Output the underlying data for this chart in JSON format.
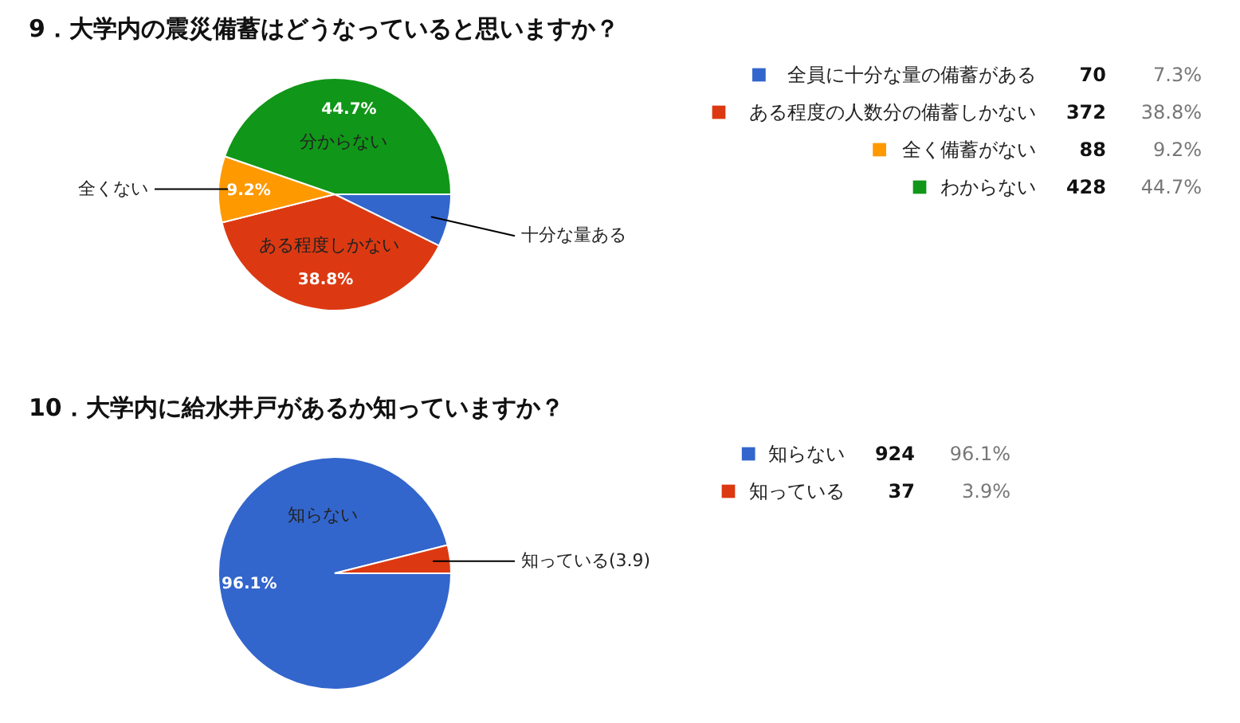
{
  "chart_data": [
    {
      "type": "pie",
      "title": "9．大学内の震災備蓄はどうなっていると思いますか？",
      "categories": [
        "全員に十分な量の備蓄がある",
        "ある程度の人数分の備蓄しかない",
        "全く備蓄がない",
        "わからない"
      ],
      "values": [
        7.3,
        38.8,
        9.2,
        44.7
      ],
      "value_labels": [
        "7.3%",
        "38.8%",
        "9.2%",
        "44.7%"
      ],
      "colors": [
        "#3366cc",
        "#dc3912",
        "#ff9900",
        "#109618"
      ],
      "annotations": [
        "十分な量ある",
        "ある程度しかない",
        "全くない",
        "分からない",
        "70",
        "372",
        "88",
        "428"
      ],
      "legend": "right"
    },
    {
      "type": "pie",
      "title": "10．大学内に給水井戸があるか知っていますか？",
      "categories": [
        "知らない",
        "知っている"
      ],
      "values": [
        96.1,
        3.9
      ],
      "value_labels": [
        "96.1%",
        "3.9%"
      ],
      "colors": [
        "#3366cc",
        "#dc3912"
      ],
      "annotations": [
        "知らない",
        "知っている(3.9)",
        "924",
        "37"
      ],
      "legend": "right"
    }
  ]
}
